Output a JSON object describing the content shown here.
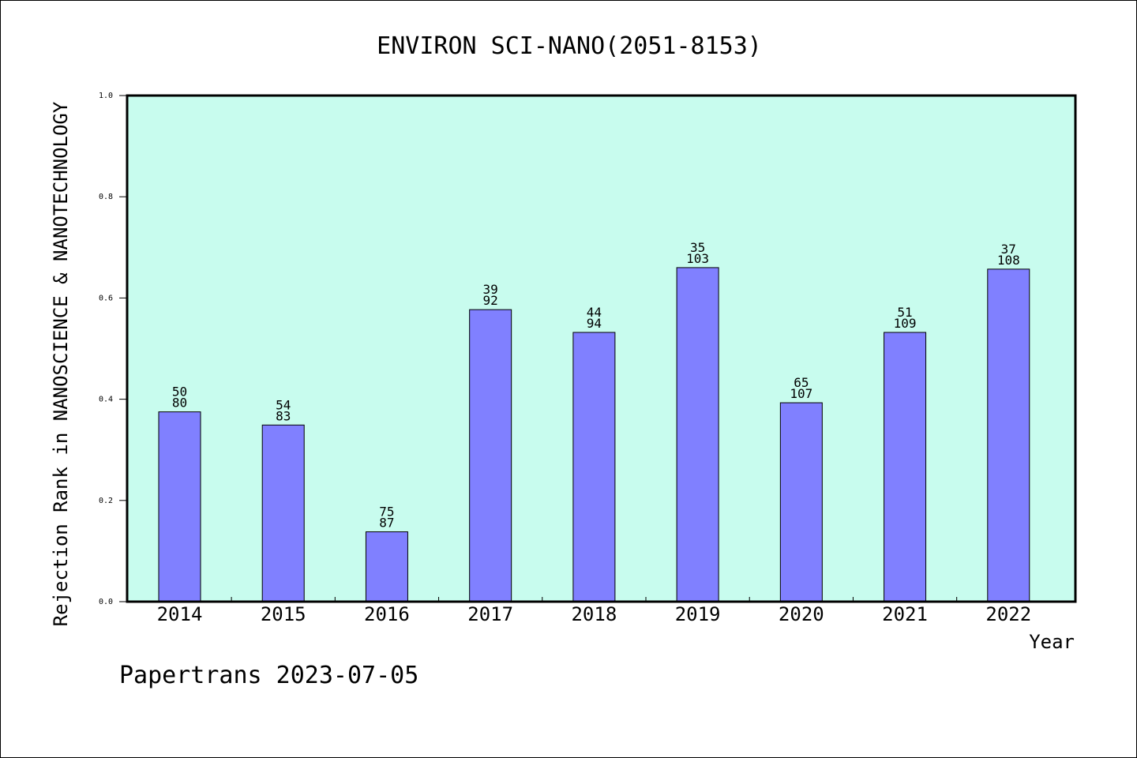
{
  "chart_data": {
    "type": "bar",
    "title": "ENVIRON SCI-NANO(2051-8153)",
    "xlabel": "Year",
    "ylabel": "Rejection Rank in NANOSCIENCE & NANOTECHNOLOGY",
    "ylim": [
      0,
      1.0
    ],
    "yticks": [
      "0.0",
      "0.2",
      "0.4",
      "0.6",
      "0.8",
      "1.0"
    ],
    "categories": [
      "2014",
      "2015",
      "2016",
      "2017",
      "2018",
      "2019",
      "2020",
      "2021",
      "2022"
    ],
    "values": [
      0.375,
      0.349,
      0.138,
      0.577,
      0.532,
      0.66,
      0.393,
      0.532,
      0.657
    ],
    "labels_top": [
      "50",
      "54",
      "75",
      "39",
      "44",
      "35",
      "65",
      "51",
      "37"
    ],
    "labels_bottom": [
      "80",
      "83",
      "87",
      "92",
      "94",
      "103",
      "107",
      "109",
      "108"
    ],
    "grid": false,
    "colors": {
      "plot_background": "#c8fcee",
      "bar_fill": "#8080ff",
      "bar_stroke": "#000000"
    }
  },
  "footer": "Papertrans 2023-07-05"
}
